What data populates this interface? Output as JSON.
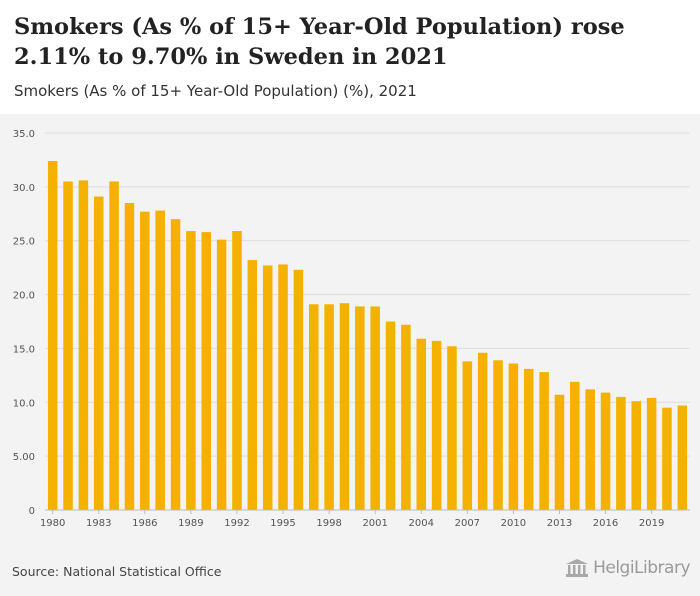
{
  "header": {
    "title": "Smokers (As % of 15+ Year-Old Population) rose 2.11% to 9.70% in Sweden in 2021",
    "subtitle": "Smokers (As % of 15+ Year-Old Population) (%), 2021"
  },
  "footer": {
    "source": "Source: National Statistical Office",
    "logo_text": "HelgiLibrary"
  },
  "colors": {
    "bar": "#f5b100",
    "grid": "#dddddd",
    "axis_text": "#555555"
  },
  "chart_data": {
    "type": "bar",
    "title": "",
    "xlabel": "",
    "ylabel": "",
    "ylim": [
      0,
      35
    ],
    "yticks": [
      "0",
      "5.00",
      "10.0",
      "15.0",
      "20.0",
      "25.0",
      "30.0",
      "35.0"
    ],
    "xticks": [
      "1980",
      "1983",
      "1986",
      "1989",
      "1992",
      "1995",
      "1998",
      "2001",
      "2004",
      "2007",
      "2010",
      "2013",
      "2016",
      "2019"
    ],
    "grid": true,
    "legend": "none",
    "categories": [
      "1980",
      "1981",
      "1982",
      "1983",
      "1984",
      "1985",
      "1986",
      "1987",
      "1988",
      "1989",
      "1990",
      "1991",
      "1992",
      "1993",
      "1994",
      "1995",
      "1996",
      "1997",
      "1998",
      "1999",
      "2000",
      "2001",
      "2002",
      "2003",
      "2004",
      "2005",
      "2006",
      "2007",
      "2008",
      "2009",
      "2010",
      "2011",
      "2012",
      "2013",
      "2014",
      "2015",
      "2016",
      "2017",
      "2018",
      "2019",
      "2020",
      "2021"
    ],
    "values": [
      32.4,
      30.5,
      30.6,
      29.1,
      30.5,
      28.5,
      27.7,
      27.8,
      27.0,
      25.9,
      25.8,
      25.1,
      25.9,
      23.2,
      22.7,
      22.8,
      22.3,
      19.1,
      19.1,
      19.2,
      18.9,
      18.9,
      17.5,
      17.2,
      15.9,
      15.7,
      15.2,
      13.8,
      14.6,
      13.9,
      13.6,
      13.1,
      12.8,
      10.7,
      11.9,
      11.2,
      10.9,
      10.5,
      10.1,
      10.4,
      9.5,
      9.7
    ]
  }
}
